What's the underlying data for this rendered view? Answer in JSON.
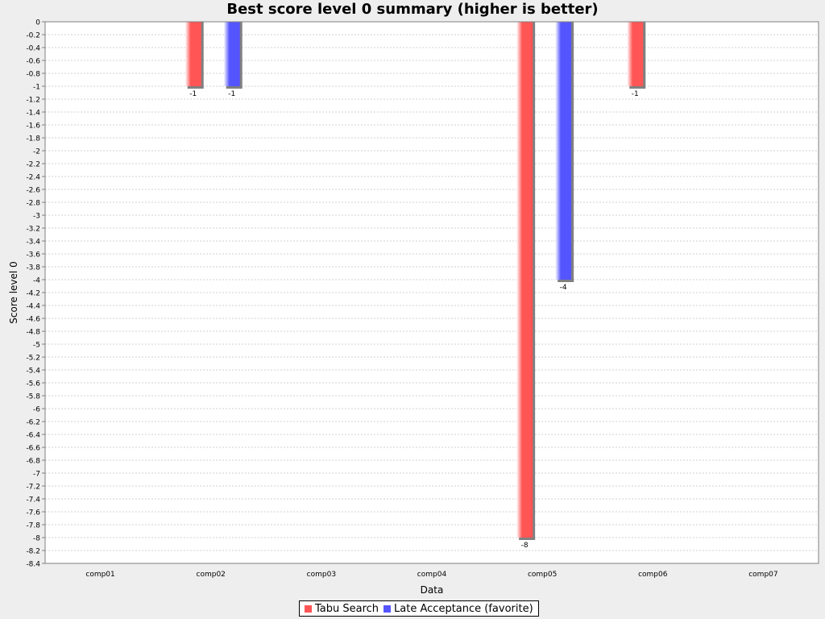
{
  "chart_data": {
    "type": "bar",
    "title": "Best score level 0 summary (higher is better)",
    "xlabel": "Data",
    "ylabel": "Score level 0",
    "ylim": [
      -8.4,
      0
    ],
    "ytick_step": 0.2,
    "grid": true,
    "legend_position": "bottom-center",
    "categories": [
      "comp01",
      "comp02",
      "comp03",
      "comp04",
      "comp05",
      "comp06",
      "comp07"
    ],
    "series": [
      {
        "name": "Tabu Search",
        "color": "#ff5555",
        "values": [
          null,
          -1,
          null,
          null,
          -8,
          -1,
          null
        ],
        "labels": [
          null,
          "-1",
          null,
          null,
          "-8",
          "-1",
          null
        ]
      },
      {
        "name": "Late Acceptance (favorite)",
        "color": "#5555ff",
        "values": [
          null,
          -1,
          null,
          null,
          -4,
          null,
          null
        ],
        "labels": [
          null,
          "-1",
          null,
          null,
          "-4",
          null,
          null
        ]
      }
    ]
  }
}
